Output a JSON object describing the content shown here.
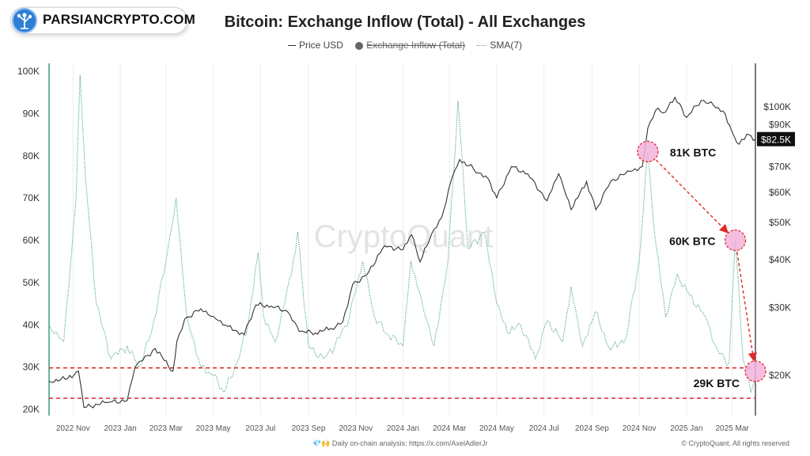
{
  "brand": {
    "logo_text": "PARSIANCRYPTO.COM",
    "logo_color": "#2f7fd6"
  },
  "footer": {
    "analysis": "💎🙌 Daily on-chain analysis: https://x.com/AxelAdlerJr",
    "copyright": "© CryptoQuant. All rights reserved"
  },
  "watermark": "CryptoQuant",
  "chart_data": {
    "type": "line",
    "title": "Bitcoin: Exchange Inflow (Total) - All Exchanges",
    "legend_placement": "top-center",
    "legend": [
      {
        "name": "Price USD",
        "style": "line",
        "enabled": true
      },
      {
        "name": "Exchange Inflow (Total)",
        "style": "dot",
        "enabled": false
      },
      {
        "name": "SMA(7)",
        "style": "dotted",
        "enabled": true
      }
    ],
    "x_ticks": [
      "2022 Nov",
      "2023 Jan",
      "2023 Mar",
      "2023 May",
      "2023 Jul",
      "2023 Sep",
      "2023 Nov",
      "2024 Jan",
      "2024 Mar",
      "2024 May",
      "2024 Jul",
      "2024 Sep",
      "2024 Nov",
      "2025 Jan",
      "2025 Mar"
    ],
    "x_range": [
      "2022-10-01",
      "2025-03-31"
    ],
    "y_left": {
      "label": "",
      "ticks": [
        "100K",
        "90K",
        "80K",
        "70K",
        "60K",
        "50K",
        "40K",
        "30K",
        "20K"
      ],
      "range": [
        20000,
        100000
      ]
    },
    "y_right": {
      "label": "",
      "scale": "log",
      "ticks": [
        "$100K",
        "$90K",
        "$70K",
        "$60K",
        "$50K",
        "$40K",
        "$30K",
        "$20K"
      ],
      "range": [
        15700,
        130000
      ]
    },
    "grid": {
      "vertical": true,
      "horizontal": false
    },
    "series": [
      {
        "name": "Price USD",
        "axis": "right",
        "color": "#333333",
        "x": [
          "2022-10-01",
          "2022-10-25",
          "2022-11-08",
          "2022-11-15",
          "2022-12-15",
          "2023-01-10",
          "2023-01-20",
          "2023-02-15",
          "2023-03-10",
          "2023-03-15",
          "2023-03-25",
          "2023-04-15",
          "2023-05-01",
          "2023-05-20",
          "2023-06-10",
          "2023-06-25",
          "2023-07-15",
          "2023-08-05",
          "2023-08-20",
          "2023-09-10",
          "2023-09-30",
          "2023-10-15",
          "2023-10-28",
          "2023-11-15",
          "2023-12-08",
          "2024-01-01",
          "2024-01-12",
          "2024-01-23",
          "2024-02-10",
          "2024-02-20",
          "2024-03-05",
          "2024-03-14",
          "2024-04-01",
          "2024-04-20",
          "2024-05-01",
          "2024-05-20",
          "2024-06-10",
          "2024-07-05",
          "2024-07-20",
          "2024-08-05",
          "2024-08-25",
          "2024-09-06",
          "2024-09-25",
          "2024-10-20",
          "2024-11-05",
          "2024-11-12",
          "2024-11-22",
          "2024-12-05",
          "2024-12-17",
          "2025-01-01",
          "2025-01-20",
          "2025-02-05",
          "2025-02-20",
          "2025-03-01",
          "2025-03-10",
          "2025-03-20",
          "2025-03-31"
        ],
        "values": [
          19300,
          19600,
          20500,
          16500,
          17000,
          17200,
          21000,
          23500,
          20500,
          24500,
          28000,
          29800,
          28500,
          26800,
          25500,
          30500,
          30300,
          29300,
          26000,
          25800,
          26500,
          27500,
          34500,
          36500,
          43500,
          42500,
          46500,
          39500,
          48000,
          51500,
          66000,
          73000,
          69000,
          65000,
          58000,
          70000,
          67000,
          57000,
          67000,
          54000,
          64000,
          54000,
          64000,
          68000,
          70000,
          88000,
          98000,
          97000,
          106000,
          94000,
          104000,
          101000,
          96000,
          86000,
          80000,
          85000,
          82500
        ]
      },
      {
        "name": "SMA(7)",
        "axis": "left",
        "color": "#4aa57e",
        "x": [
          "2022-10-01",
          "2022-10-20",
          "2022-11-05",
          "2022-11-10",
          "2022-11-17",
          "2022-12-01",
          "2022-12-20",
          "2023-01-10",
          "2023-01-25",
          "2023-02-10",
          "2023-03-01",
          "2023-03-14",
          "2023-03-28",
          "2023-04-15",
          "2023-05-01",
          "2023-05-15",
          "2023-06-01",
          "2023-06-15",
          "2023-06-28",
          "2023-07-05",
          "2023-07-20",
          "2023-08-10",
          "2023-08-18",
          "2023-09-01",
          "2023-09-20",
          "2023-10-05",
          "2023-10-24",
          "2023-11-10",
          "2023-11-25",
          "2023-12-10",
          "2024-01-01",
          "2024-01-11",
          "2024-01-25",
          "2024-02-10",
          "2024-02-28",
          "2024-03-12",
          "2024-03-25",
          "2024-04-15",
          "2024-05-01",
          "2024-05-15",
          "2024-06-01",
          "2024-06-20",
          "2024-07-05",
          "2024-07-25",
          "2024-08-05",
          "2024-08-20",
          "2024-09-05",
          "2024-09-25",
          "2024-10-15",
          "2024-11-01",
          "2024-11-12",
          "2024-11-20",
          "2024-12-05",
          "2024-12-20",
          "2025-01-05",
          "2025-01-25",
          "2025-02-10",
          "2025-02-25",
          "2025-03-05",
          "2025-03-15",
          "2025-03-25",
          "2025-03-31"
        ],
        "values": [
          40000,
          36000,
          70000,
          99000,
          75000,
          45000,
          32000,
          35000,
          30000,
          38000,
          55000,
          70000,
          42000,
          30000,
          28000,
          24000,
          31000,
          40000,
          57000,
          42000,
          36000,
          52000,
          62000,
          35000,
          32000,
          35000,
          42000,
          55000,
          42000,
          38000,
          35000,
          55000,
          46000,
          35000,
          55000,
          93000,
          58000,
          62000,
          45000,
          38000,
          40000,
          32000,
          41000,
          36000,
          49000,
          35000,
          43000,
          34000,
          37000,
          55000,
          81000,
          63000,
          42000,
          52000,
          47000,
          42000,
          34000,
          31000,
          60000,
          32000,
          24000,
          29000
        ]
      }
    ],
    "reference_lines": [
      {
        "axis": "left",
        "value": 29800,
        "style": "dashed",
        "color": "#e02a2a"
      },
      {
        "axis": "left",
        "value": 22600,
        "style": "dashed",
        "color": "#e02a2a"
      }
    ],
    "last_price_badge": "$82.5K",
    "annotations": [
      {
        "text": "81K BTC",
        "x": "2024-11-12",
        "y": 81000
      },
      {
        "text": "60K BTC",
        "x": "2025-03-05",
        "y": 60000
      },
      {
        "text": "29K BTC",
        "x": "2025-03-31",
        "y": 29000
      }
    ],
    "annotation_arrow_color": "#e02a2a",
    "highlight_fill": "#f2b3dc"
  }
}
